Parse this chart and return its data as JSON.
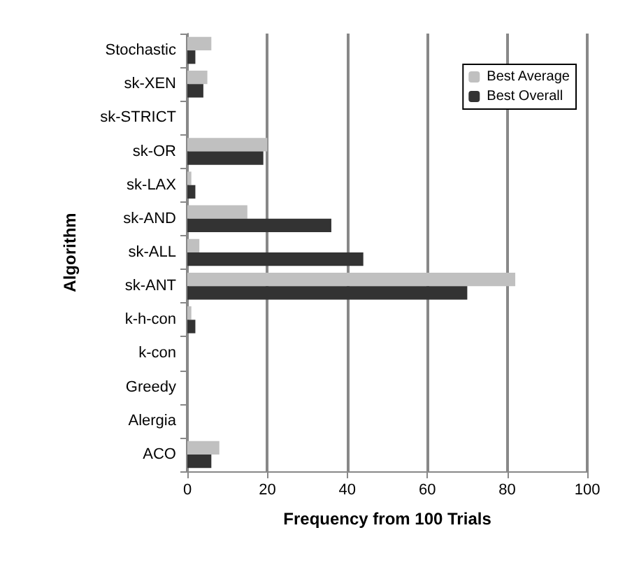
{
  "chart_data": {
    "type": "bar",
    "orientation": "horizontal",
    "xlabel": "Frequency from 100 Trials",
    "ylabel": "Algorithm",
    "categories": [
      "Stochastic",
      "sk-XEN",
      "sk-STRICT",
      "sk-OR",
      "sk-LAX",
      "sk-AND",
      "sk-ALL",
      "sk-ANT",
      "k-h-con",
      "k-con",
      "Greedy",
      "Alergia",
      "ACO"
    ],
    "series": [
      {
        "name": "Best Average",
        "color": "#c0c0c0",
        "values": [
          6,
          5,
          0,
          20,
          1,
          15,
          3,
          82,
          1,
          0,
          0,
          0,
          8
        ]
      },
      {
        "name": "Best Overall",
        "color": "#333333",
        "values": [
          2,
          4,
          0,
          19,
          2,
          36,
          44,
          70,
          2,
          0,
          0,
          0,
          6
        ]
      }
    ],
    "xlim": [
      0,
      100
    ],
    "xticks": [
      0,
      20,
      40,
      60,
      80,
      100
    ],
    "grid": "x",
    "legend": "top right"
  }
}
